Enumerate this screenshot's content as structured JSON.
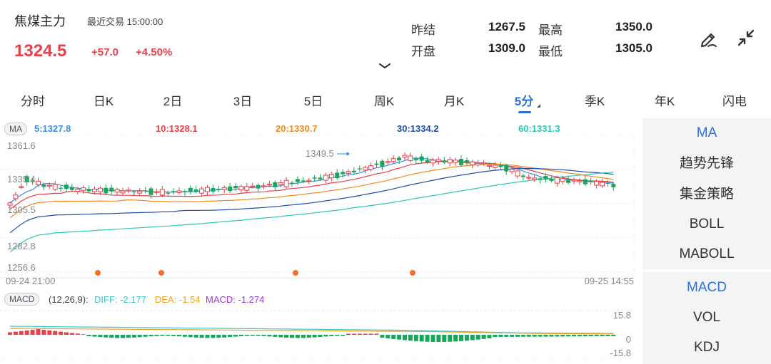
{
  "header": {
    "title": "焦煤主力",
    "last_trade_label": "最近交易",
    "last_trade_time": "15:00:00",
    "price": "1324.5",
    "change": "+57.0",
    "change_pct": "+4.50%",
    "stats": [
      {
        "label": "昨结",
        "value": "1267.5"
      },
      {
        "label": "最高",
        "value": "1350.0"
      },
      {
        "label": "开盘",
        "value": "1309.0"
      },
      {
        "label": "最低",
        "value": "1305.0"
      }
    ],
    "icons": [
      "draw-pen-icon",
      "collapse-arrows-icon",
      "chevron-down-icon"
    ]
  },
  "tabs": [
    "分时",
    "日K",
    "2日",
    "3日",
    "5日",
    "周K",
    "月K",
    "5分",
    "季K",
    "年K",
    "闪电"
  ],
  "active_tab": "5分",
  "ma_legend": {
    "tag": "MA",
    "items": [
      {
        "label": "5:1327.8",
        "color": "#3b8fe0"
      },
      {
        "label": "10:1328.1",
        "color": "#e8414a"
      },
      {
        "label": "20:1330.7",
        "color": "#f08c1e"
      },
      {
        "label": "30:1334.2",
        "color": "#1f4fa8"
      },
      {
        "label": "60:1331.3",
        "color": "#2ec7b3"
      }
    ]
  },
  "chart": {
    "y_labels": [
      "1361.6",
      "1335.4",
      "1282.8",
      "1256.6"
    ],
    "overlap_label": "1305.5",
    "max_label": "1349.5",
    "x_start": "09-24 21:00",
    "x_end": "09-25 14:55",
    "up_color": "#e8414a",
    "down_color": "#19a55b"
  },
  "macd": {
    "tag": "MACD",
    "params": "(12,26,9):",
    "diff": "DIFF: -2.177",
    "dea": "DEA: -1.54",
    "macd": "MACD: -1.274",
    "diff_color": "#3ec3c8",
    "dea_color": "#f0a01e",
    "macd_color": "#9b38d8",
    "y_top": "15.8",
    "y_mid": "0",
    "y_bot": "-15.8"
  },
  "side_panel": {
    "top_group": [
      "MA",
      "趋势先锋",
      "集金策略",
      "BOLL",
      "MABOLL"
    ],
    "bottom_group": [
      "MACD",
      "VOL",
      "KDJ"
    ],
    "active": [
      "MA",
      "MACD"
    ]
  }
}
